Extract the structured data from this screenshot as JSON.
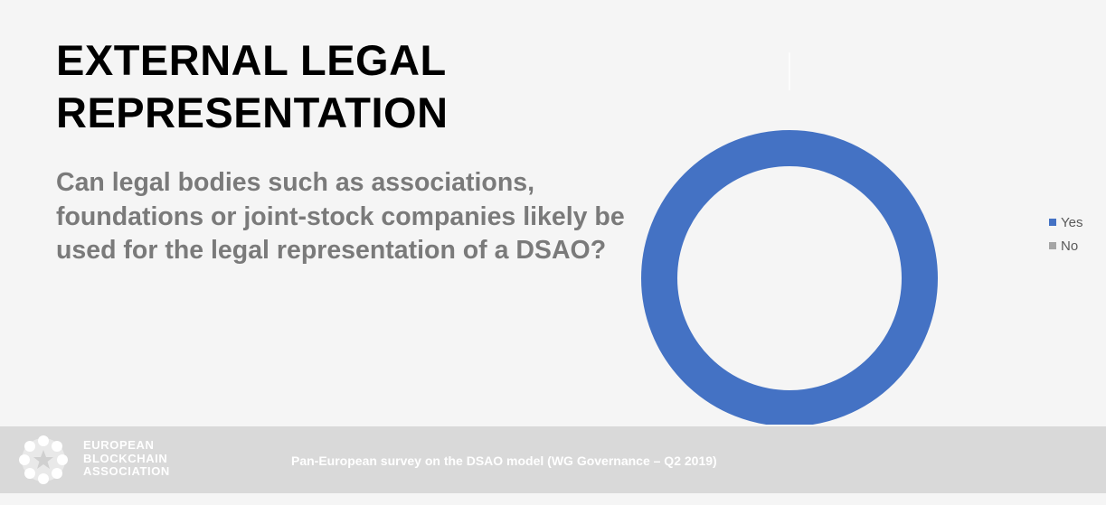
{
  "title": {
    "line1": "EXTERNAL LEGAL",
    "line2": "REPRESENTATION"
  },
  "question": "Can legal bodies such as associations, foundations or joint-stock companies likely be used for the legal representation of a DSAO?",
  "chart_data": {
    "type": "pie",
    "variant": "doughnut",
    "categories": [
      "Yes",
      "No"
    ],
    "values": [
      100,
      0
    ],
    "colors": [
      "#4472c4",
      "#a5a5a5"
    ],
    "title": "",
    "legend": "right"
  },
  "footer": {
    "logo_lines": [
      "EUROPEAN",
      "BLOCKCHAIN",
      "ASSOCIATION"
    ],
    "caption": "Pan-European survey on the DSAO model (WG Governance – Q2 2019)"
  }
}
